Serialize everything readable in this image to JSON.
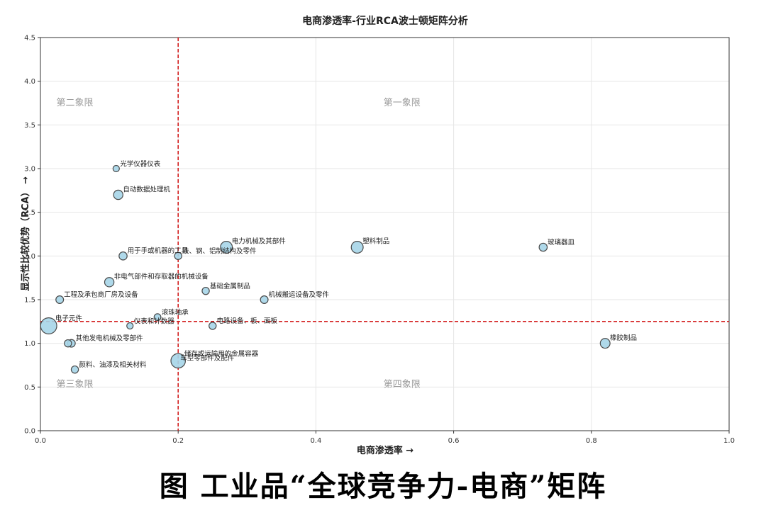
{
  "chart_data": {
    "type": "scatter",
    "title": "电商渗透率-行业RCA波士顿矩阵分析",
    "xlabel": "电商渗透率 →",
    "ylabel": "显示性比较优势（RCA） →",
    "xlim": [
      0,
      1.0
    ],
    "ylim": [
      0,
      4.5
    ],
    "xticks": [
      "0.0",
      "0.2",
      "0.4",
      "0.6",
      "0.8",
      "1.0"
    ],
    "yticks": [
      "0.0",
      "0.5",
      "1.0",
      "1.5",
      "2.0",
      "2.5",
      "3.0",
      "3.5",
      "4.0",
      "4.5"
    ],
    "grid": true,
    "threshold_x": 0.2,
    "threshold_y": 1.25,
    "quadrant_labels": {
      "q1": "第一象限",
      "q2": "第二象限",
      "q3": "第三象限",
      "q4": "第四象限"
    },
    "colors": {
      "point_fill": "#a6d5e8",
      "point_stroke": "#4a4a4a",
      "threshold": "#d42020",
      "quadrant_text": "#9a9a9a",
      "grid": "#e6e6e6"
    },
    "points": [
      {
        "label": "光学仪器仪表",
        "x": 0.11,
        "y": 3.0,
        "size": 0.25
      },
      {
        "label": "自动数据处理机",
        "x": 0.113,
        "y": 2.7,
        "size": 0.6
      },
      {
        "label": "用于手或机器的工具",
        "x": 0.12,
        "y": 2.0,
        "size": 0.45
      },
      {
        "label": "铁、钢、铝制结构及零件",
        "x": 0.2,
        "y": 2.0,
        "size": 0.35
      },
      {
        "label": "电力机械及其部件",
        "x": 0.27,
        "y": 2.1,
        "size": 0.9
      },
      {
        "label": "塑料制品",
        "x": 0.46,
        "y": 2.1,
        "size": 0.9
      },
      {
        "label": "玻璃器皿",
        "x": 0.73,
        "y": 2.1,
        "size": 0.45
      },
      {
        "label": "非电气部件和存取器的机械设备",
        "x": 0.1,
        "y": 1.7,
        "size": 0.6
      },
      {
        "label": "基础金属制品",
        "x": 0.24,
        "y": 1.6,
        "size": 0.35
      },
      {
        "label": "工程及承包商厂房及设备",
        "x": 0.028,
        "y": 1.5,
        "size": 0.4
      },
      {
        "label": "机械搬运设备及零件",
        "x": 0.325,
        "y": 1.5,
        "size": 0.4
      },
      {
        "label": "滚珠轴承",
        "x": 0.17,
        "y": 1.3,
        "size": 0.3
      },
      {
        "label": "电子元件",
        "x": 0.012,
        "y": 1.2,
        "size": 1.4
      },
      {
        "label": "仪表和计数器",
        "x": 0.13,
        "y": 1.2,
        "size": 0.25
      },
      {
        "label": "电路设备、板、面板",
        "x": 0.25,
        "y": 1.2,
        "size": 0.35
      },
      {
        "label": "其他发电机械及零部件",
        "x": 0.045,
        "y": 1.0,
        "size": 0.4
      },
      {
        "label": "",
        "x": 0.04,
        "y": 1.0,
        "size": 0.35
      },
      {
        "label": "橡胶制品",
        "x": 0.82,
        "y": 1.0,
        "size": 0.65
      },
      {
        "label": "储存或运输用的金属容器",
        "x": 0.2,
        "y": 0.8,
        "size": 1.2
      },
      {
        "label": "车型零部件及配件",
        "x": 0.2,
        "y": 0.8,
        "size": 0.0
      },
      {
        "label": "颜料、油漆及相关材料",
        "x": 0.05,
        "y": 0.7,
        "size": 0.35
      }
    ]
  },
  "caption": "图 工业品“全球竞争力-电商”矩阵"
}
